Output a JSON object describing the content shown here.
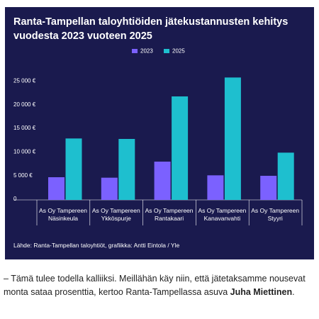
{
  "chart_data": {
    "type": "bar",
    "title": "Ranta-Tampellan taloyhtiöiden jätekustannusten kehitys\nvuodesta 2023  vuoteen 2025",
    "categories": [
      "As Oy Tampereen\nNäsinkeula",
      "As Oy Tampereen\nYkköspurje",
      "As Oy Tampereen\nRantakaari",
      "As Oy Tampereen\nKanavanvahti",
      "As Oy Tampereen\nStyyri"
    ],
    "series": [
      {
        "name": "2023",
        "color": "#7b61ff",
        "values": [
          4800,
          4700,
          8100,
          5200,
          5100
        ]
      },
      {
        "name": "2025",
        "color": "#1ebfcf",
        "values": [
          13000,
          12900,
          21900,
          25900,
          10000
        ]
      }
    ],
    "ylim": [
      0,
      30000
    ],
    "yticks": [
      0,
      {
        "value": 5000,
        "label": "5 000 €"
      },
      {
        "value": 10000,
        "label": "10 000 €"
      },
      {
        "value": 15000,
        "label": "15 000 €"
      },
      {
        "value": 20000,
        "label": "20 000 €"
      },
      {
        "value": 25000,
        "label": "25 000 €"
      }
    ],
    "grid": false,
    "source": "Lähde: Ranta-Tampellan taloyhtiöt, grafiikka: Antti Eintola / Yle"
  },
  "article": {
    "text": "– Tämä tulee todella kalliiksi. Meillähän käy niin, että jätetaksamme nousevat monta sataa prosenttia, kertoo Ranta-Tampellassa asuva ",
    "name": "Juha Miettinen",
    "end": "."
  }
}
